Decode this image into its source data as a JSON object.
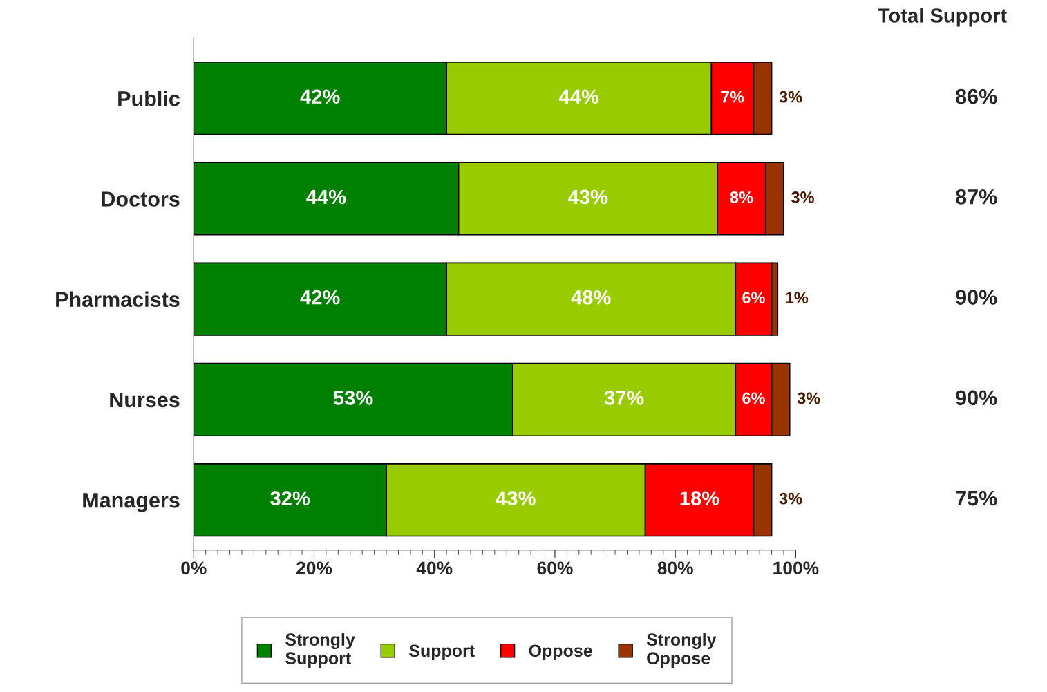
{
  "chart_data": {
    "type": "bar",
    "orientation": "horizontal",
    "stacked": true,
    "categories": [
      "Public",
      "Doctors",
      "Pharmacists",
      "Nurses",
      "Managers"
    ],
    "series": [
      {
        "name": "Strongly Support",
        "color": "#008000",
        "values": [
          42,
          44,
          42,
          53,
          32
        ],
        "value_labels": [
          "42%",
          "44%",
          "42%",
          "53%",
          "32%"
        ]
      },
      {
        "name": "Support",
        "color": "#99cc00",
        "values": [
          44,
          43,
          48,
          37,
          43
        ],
        "value_labels": [
          "44%",
          "43%",
          "48%",
          "37%",
          "43%"
        ]
      },
      {
        "name": "Oppose",
        "color": "#ff0000",
        "values": [
          7,
          8,
          6,
          6,
          18
        ],
        "value_labels": [
          "7%",
          "8%",
          "6%",
          "6%",
          "18%"
        ]
      },
      {
        "name": "Strongly Oppose",
        "color": "#993300",
        "values": [
          3,
          3,
          1,
          3,
          3
        ],
        "value_labels": [
          "3%",
          "3%",
          "1%",
          "3%",
          "3%"
        ]
      }
    ],
    "xlim": [
      0,
      100
    ],
    "xticks": [
      {
        "value": 0,
        "label": "0%"
      },
      {
        "value": 20,
        "label": "20%"
      },
      {
        "value": 40,
        "label": "40%"
      },
      {
        "value": 60,
        "label": "60%"
      },
      {
        "value": 80,
        "label": "80%"
      },
      {
        "value": 100,
        "label": "100%"
      }
    ],
    "grid": false,
    "legend": "bottom",
    "annotations": [
      "Total Support",
      "86%",
      "87%",
      "90%",
      "90%",
      "75%"
    ]
  }
}
